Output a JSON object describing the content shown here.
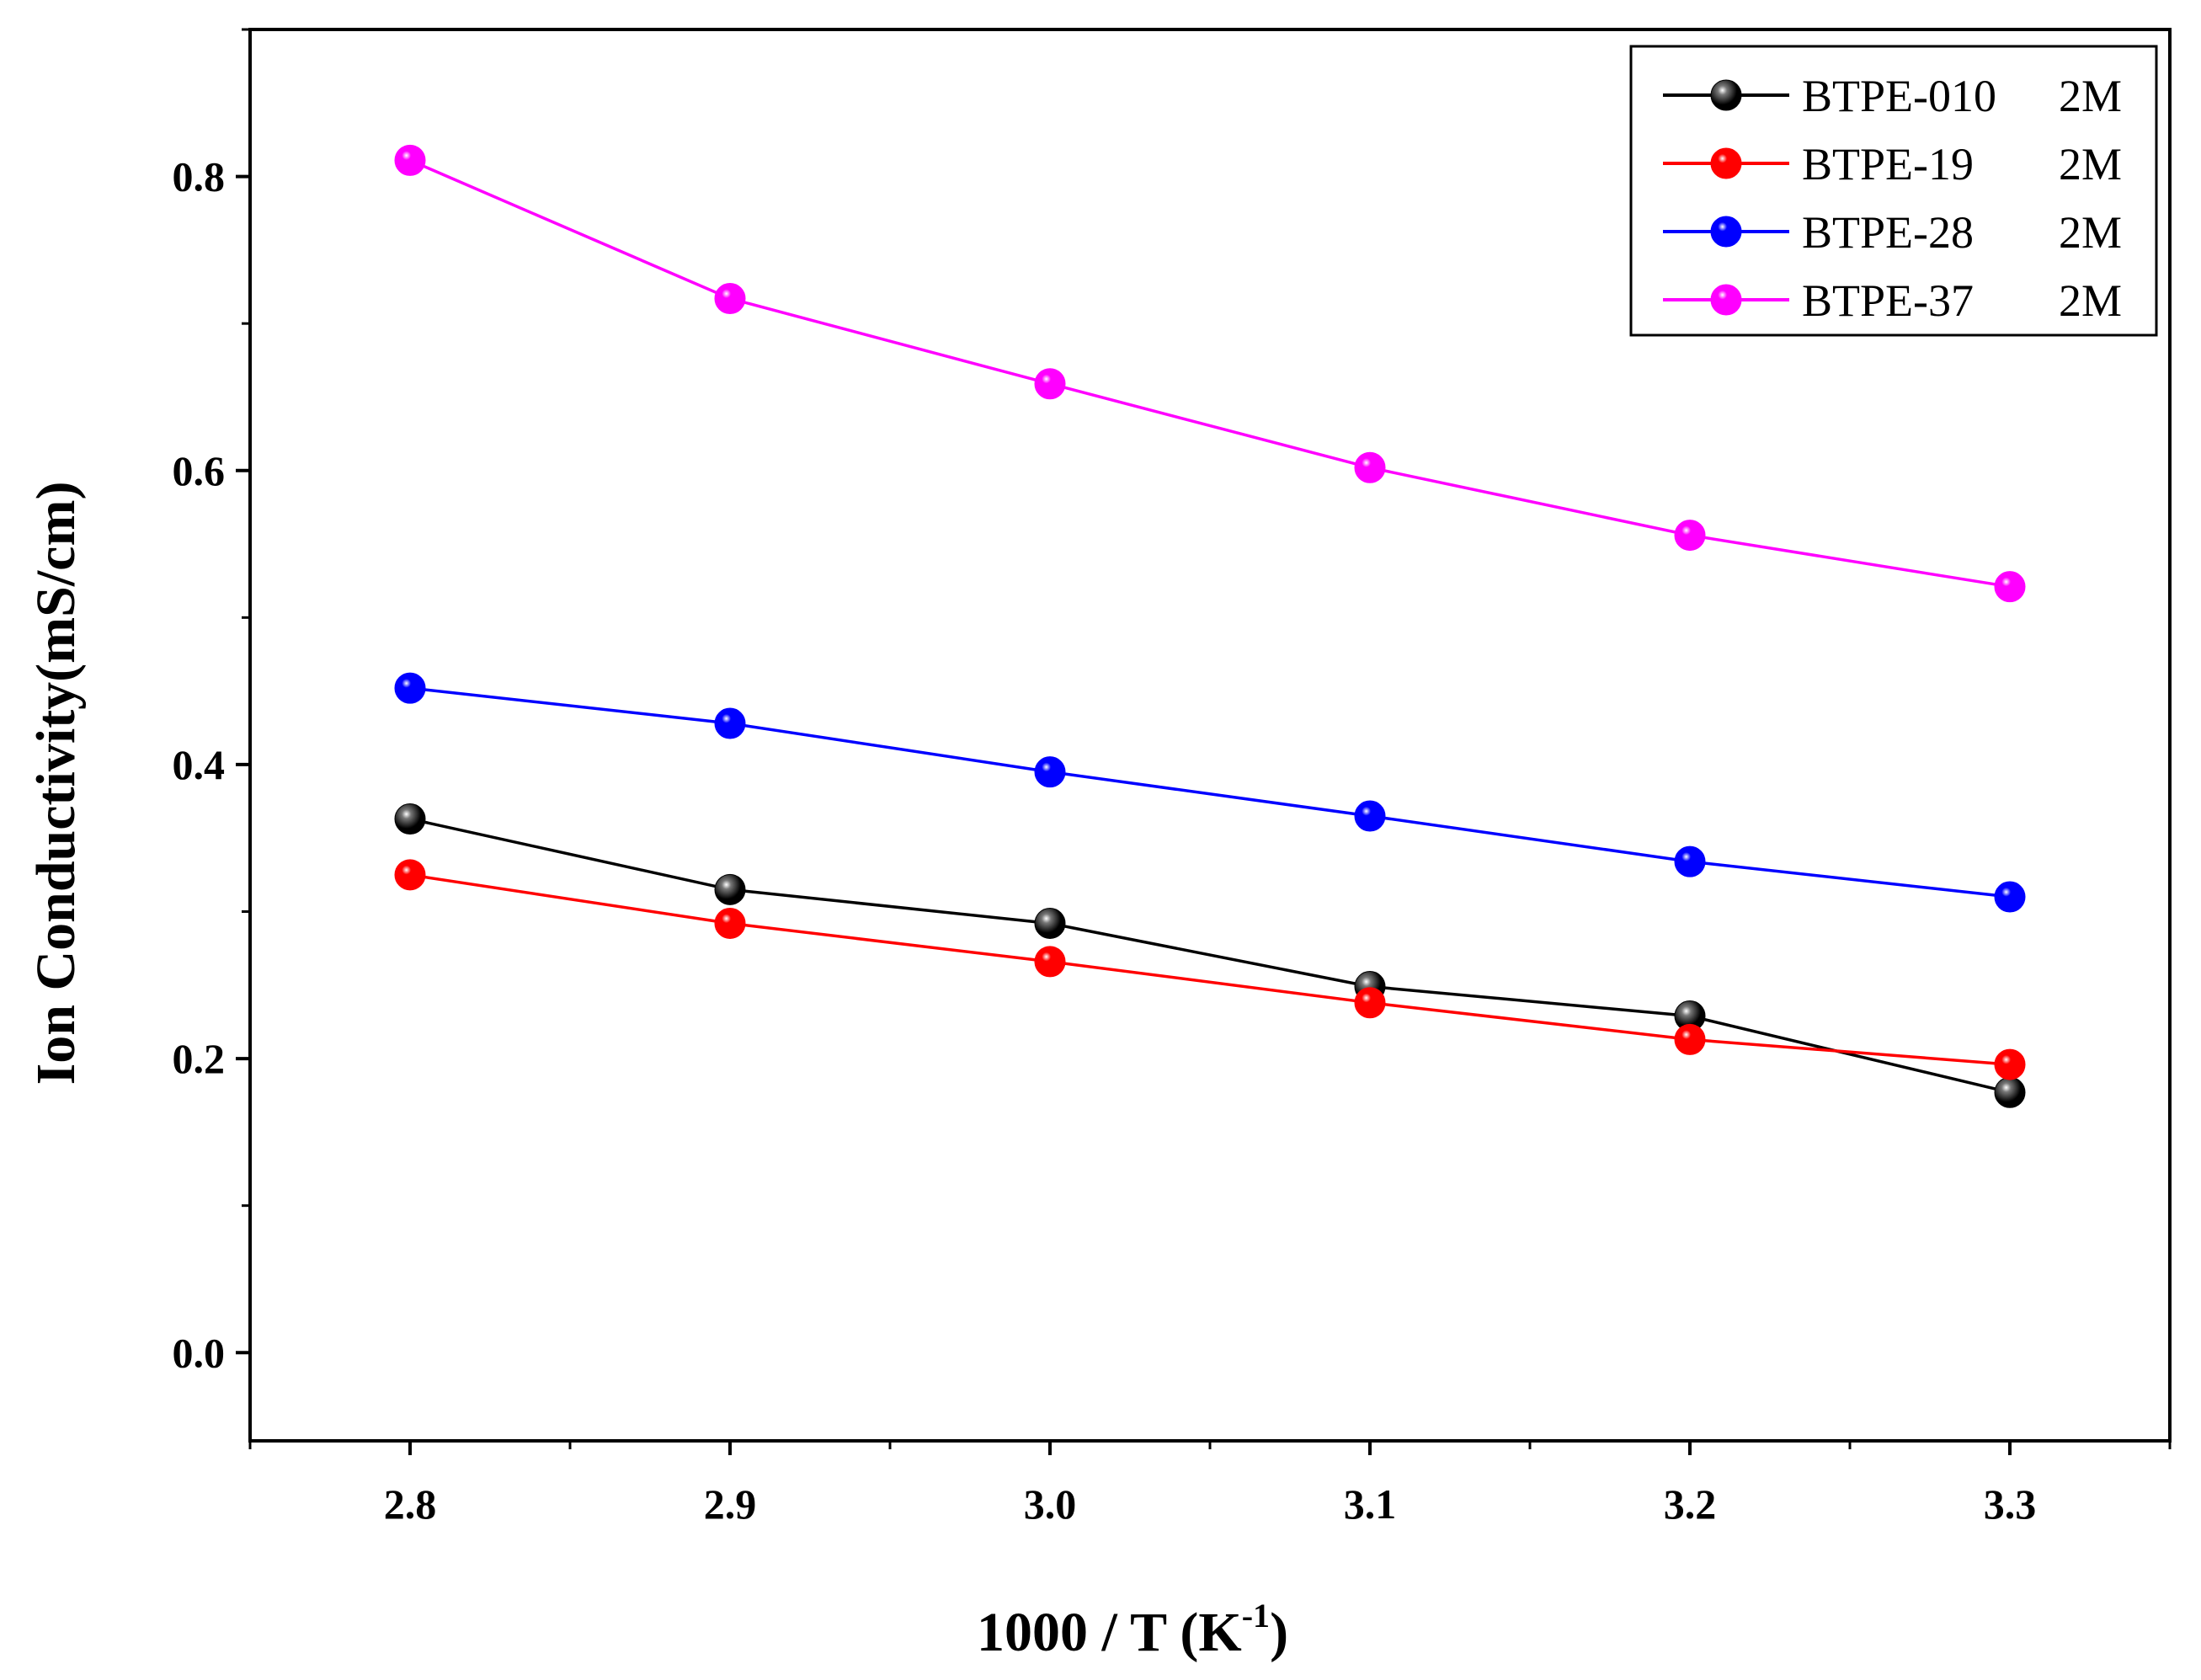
{
  "chart_data": {
    "type": "line",
    "title": "",
    "xlabel": "1000 / T (K",
    "xlabel_sup": "-1",
    "xlabel_tail": ")",
    "ylabel": "Ion Conductivity(mS/cm)",
    "xlim": [
      2.75,
      3.35
    ],
    "ylim": [
      -0.06,
      0.9
    ],
    "x_ticks": [
      2.8,
      2.9,
      3.0,
      3.1,
      3.2,
      3.3
    ],
    "x_tick_labels": [
      "2.8",
      "2.9",
      "3.0",
      "3.1",
      "3.2",
      "3.3"
    ],
    "y_ticks": [
      0.0,
      0.2,
      0.4,
      0.6,
      0.8
    ],
    "y_tick_labels": [
      "0.0",
      "0.2",
      "0.4",
      "0.6",
      "0.8"
    ],
    "grid": false,
    "legend_position": "top-right",
    "x": [
      2.8,
      2.9,
      3.0,
      3.1,
      3.2,
      3.3
    ],
    "series": [
      {
        "name": "BTPE-010",
        "conc": "2M",
        "color": "#000000",
        "values": [
          0.363,
          0.315,
          0.292,
          0.249,
          0.229,
          0.177
        ]
      },
      {
        "name": "BTPE-19",
        "conc": "2M",
        "color": "#ff0000",
        "values": [
          0.325,
          0.292,
          0.266,
          0.238,
          0.213,
          0.196
        ]
      },
      {
        "name": "BTPE-28",
        "conc": "2M",
        "color": "#0000ff",
        "values": [
          0.452,
          0.428,
          0.395,
          0.365,
          0.334,
          0.31
        ]
      },
      {
        "name": "BTPE-37",
        "conc": "2M",
        "color": "#ff00ff",
        "values": [
          0.811,
          0.717,
          0.659,
          0.602,
          0.556,
          0.521
        ]
      }
    ]
  }
}
